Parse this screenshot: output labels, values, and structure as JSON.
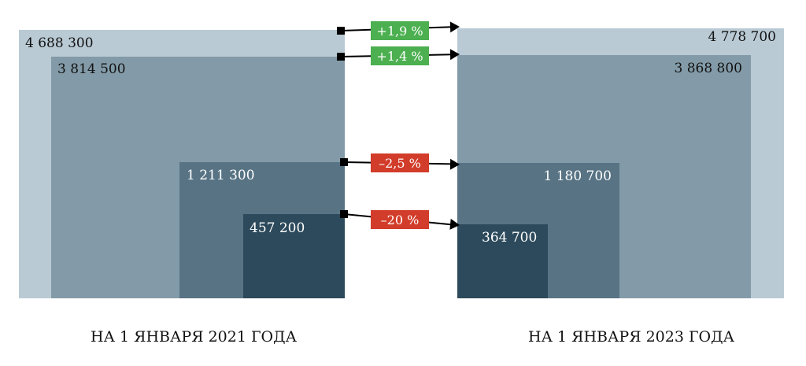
{
  "chart_data": {
    "type": "nested-area",
    "periods": [
      {
        "label": "НА 1 ЯНВАРЯ 2021 ГОДА"
      },
      {
        "label": "НА 1 ЯНВАРЯ 2023 ГОДА"
      }
    ],
    "series": [
      {
        "values": [
          4688300,
          3814500,
          1211300,
          457200
        ],
        "labels": [
          "4 688 300",
          "3 814 500",
          "1 211 300",
          "457 200"
        ],
        "color": "#b9cad4"
      },
      {
        "values": [
          4778700,
          3868800,
          1180700,
          364700
        ],
        "labels": [
          "4 778 700",
          "3 868 800",
          "1 180 700",
          "364 700"
        ],
        "color": "#839ba8"
      }
    ],
    "layers": [
      {
        "left": "4 688 300",
        "right": "4 778 700",
        "change": "+1,9 %",
        "color": "#b9cad4",
        "change_color": "#4caf50"
      },
      {
        "left": "3 814 500",
        "right": "3 868 800",
        "change": "+1,4 %",
        "color": "#839ba8",
        "change_color": "#4caf50"
      },
      {
        "left": "1 211 300",
        "right": "1 180 700",
        "change": "–2,5 %",
        "color": "#577384",
        "change_color": "#d23c2a"
      },
      {
        "left": "457 200",
        "right": "364 700",
        "change": "–20 %",
        "color": "#2c4a5b",
        "change_color": "#d23c2a"
      }
    ]
  }
}
